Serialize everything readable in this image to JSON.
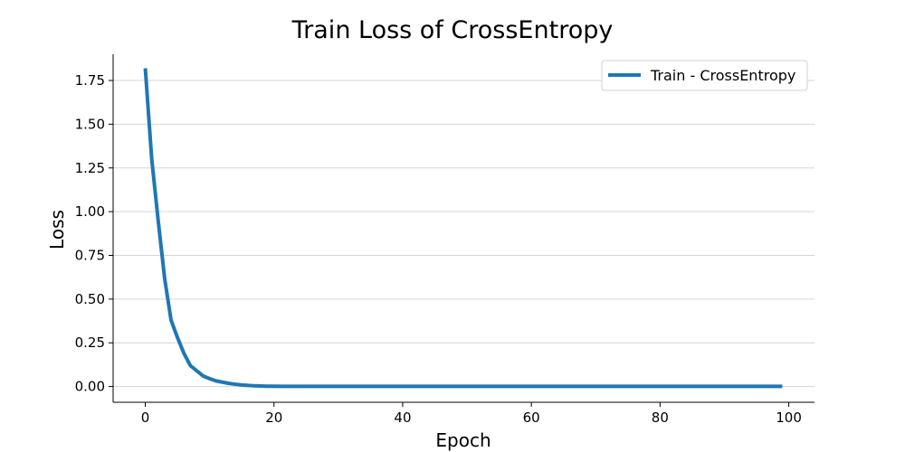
{
  "chart_data": {
    "type": "line",
    "title": "Train Loss of CrossEntropy",
    "xlabel": "Epoch",
    "ylabel": "Loss",
    "xlim": [
      -5,
      104
    ],
    "ylim": [
      -0.09,
      1.9
    ],
    "xticks": [
      0,
      20,
      40,
      60,
      80,
      100
    ],
    "xtick_labels": [
      "0",
      "20",
      "40",
      "60",
      "80",
      "100"
    ],
    "yticks": [
      0.0,
      0.25,
      0.5,
      0.75,
      1.0,
      1.25,
      1.5,
      1.75
    ],
    "ytick_labels": [
      "0.00",
      "0.25",
      "0.50",
      "0.75",
      "1.00",
      "1.25",
      "1.50",
      "1.75"
    ],
    "grid": "horizontal",
    "legend_position": "top-right",
    "series": [
      {
        "name": "Train - CrossEntropy",
        "color": "#1f77b4",
        "x": [
          0,
          1,
          2,
          3,
          4,
          5,
          6,
          7,
          8,
          9,
          10,
          11,
          12,
          13,
          14,
          15,
          16,
          17,
          18,
          19,
          20,
          21,
          22,
          23,
          24,
          25,
          26,
          27,
          28,
          29,
          30,
          31,
          32,
          33,
          34,
          35,
          36,
          37,
          38,
          39,
          40,
          41,
          42,
          43,
          44,
          45,
          46,
          47,
          48,
          49,
          50,
          51,
          52,
          53,
          54,
          55,
          56,
          57,
          58,
          59,
          60,
          61,
          62,
          63,
          64,
          65,
          66,
          67,
          68,
          69,
          70,
          71,
          72,
          73,
          74,
          75,
          76,
          77,
          78,
          79,
          80,
          81,
          82,
          83,
          84,
          85,
          86,
          87,
          88,
          89,
          90,
          91,
          92,
          93,
          94,
          95,
          96,
          97,
          98,
          99
        ],
        "values": [
          1.82,
          1.3,
          0.95,
          0.62,
          0.38,
          0.28,
          0.19,
          0.12,
          0.09,
          0.06,
          0.045,
          0.032,
          0.025,
          0.018,
          0.013,
          0.009,
          0.006,
          0.004,
          0.003,
          0.002,
          0.0015,
          0.001,
          0.001,
          0.001,
          0.001,
          0.001,
          0.001,
          0.001,
          0.001,
          0.001,
          0.001,
          0.001,
          0.001,
          0.001,
          0.001,
          0.001,
          0.001,
          0.001,
          0.001,
          0.001,
          0.001,
          0.001,
          0.001,
          0.001,
          0.001,
          0.001,
          0.001,
          0.001,
          0.001,
          0.001,
          0.001,
          0.001,
          0.001,
          0.001,
          0.001,
          0.001,
          0.001,
          0.001,
          0.001,
          0.001,
          0.001,
          0.001,
          0.001,
          0.001,
          0.001,
          0.001,
          0.001,
          0.001,
          0.001,
          0.001,
          0.001,
          0.001,
          0.001,
          0.001,
          0.001,
          0.001,
          0.001,
          0.001,
          0.001,
          0.001,
          0.001,
          0.001,
          0.001,
          0.001,
          0.001,
          0.001,
          0.001,
          0.001,
          0.001,
          0.001,
          0.001,
          0.001,
          0.001,
          0.001,
          0.001,
          0.001,
          0.001,
          0.001,
          0.001,
          0.001
        ]
      }
    ]
  }
}
